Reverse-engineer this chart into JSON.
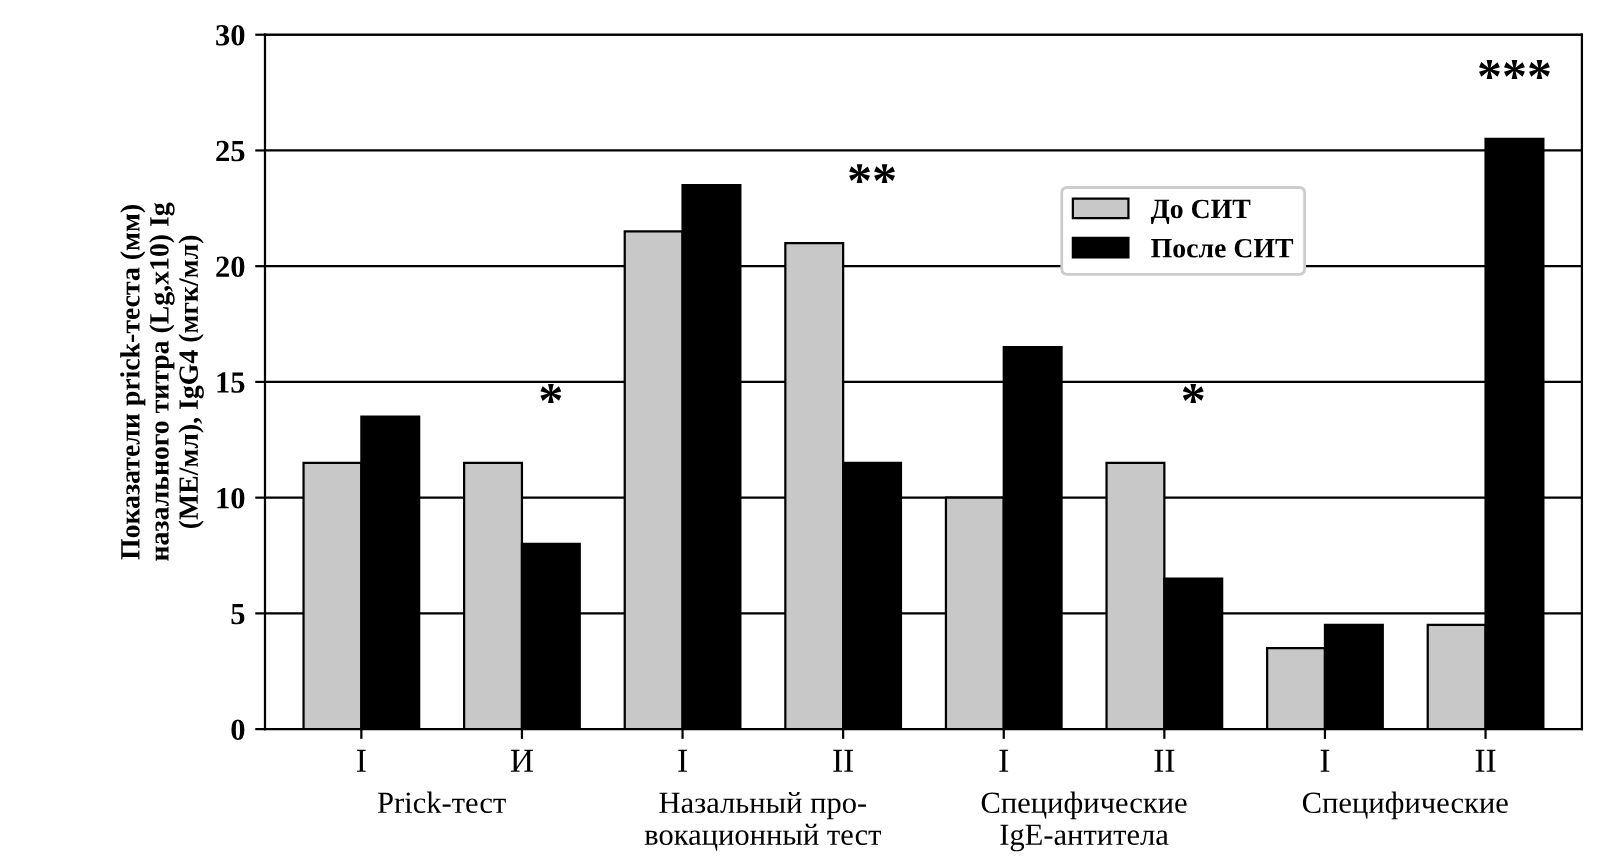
{
  "chart_data": {
    "type": "bar",
    "categories": [
      "I",
      "И",
      "I",
      "II",
      "I",
      "II",
      "I",
      "II"
    ],
    "series": [
      {
        "name": "До СИТ",
        "color": "#c8c8c8",
        "values": [
          11.5,
          11.5,
          21.5,
          21,
          10,
          11.5,
          3.5,
          4.5
        ]
      },
      {
        "name": "После СИТ",
        "color": "#000000",
        "values": [
          13.5,
          8,
          23.5,
          11.5,
          16.5,
          6.5,
          4.5,
          25.5
        ]
      }
    ],
    "ylabel": "Показатели prick-теста (мм)\nназального титра (Lg,x10) Ig\n(МЕ/мл), IgG4 (мгк/мл)",
    "ylim": [
      0,
      30
    ],
    "yticks": [
      0,
      5,
      10,
      15,
      20,
      25,
      30
    ],
    "grid": "y",
    "legend": "top right",
    "annotations": [
      "Prick-тест",
      "Назальный про-\nвокационный тест",
      "Специфические\nIgE-антитела",
      "Специфические",
      "*",
      "**",
      "*",
      "***"
    ]
  }
}
